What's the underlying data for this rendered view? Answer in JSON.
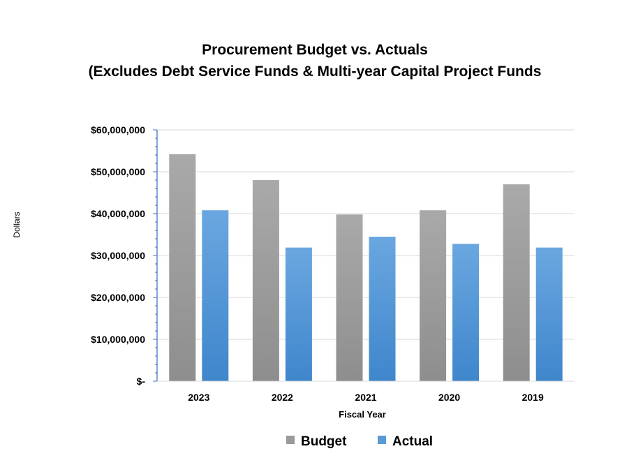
{
  "chart_data": {
    "type": "bar",
    "title_lines": [
      "Procurement Budget vs. Actuals",
      "(Excludes Debt Service Funds & Multi-year Capital Project Funds"
    ],
    "xlabel": "Fiscal Year",
    "ylabel": "Dollars",
    "categories": [
      "2023",
      "2022",
      "2021",
      "2020",
      "2019"
    ],
    "series": [
      {
        "name": "Budget",
        "color": "#9a9a9a",
        "values": [
          54200000,
          48000000,
          39800000,
          40800000,
          47000000
        ]
      },
      {
        "name": "Actual",
        "color": "#5b9bd5",
        "values": [
          40800000,
          31900000,
          34500000,
          32800000,
          31900000
        ]
      }
    ],
    "ylim": [
      0,
      60000000
    ],
    "yticks": [
      0,
      10000000,
      20000000,
      30000000,
      40000000,
      50000000,
      60000000
    ],
    "ytick_labels": [
      "$-",
      "$10,000,000",
      "$20,000,000",
      "$30,000,000",
      "$40,000,000",
      "$50,000,000",
      "$60,000,000"
    ],
    "grid": true,
    "legend_position": "bottom"
  }
}
